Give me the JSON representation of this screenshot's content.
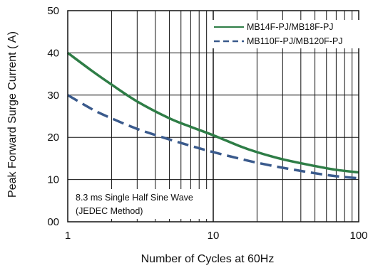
{
  "chart_data": {
    "type": "line",
    "xscale": "log",
    "xlim": [
      1,
      100
    ],
    "ylim": [
      0,
      50
    ],
    "xlabel": "Number of Cycles at 60Hz",
    "ylabel": "Peak Forward Surge Current ( A)",
    "x_ticks": [
      "1",
      "10",
      "100"
    ],
    "y_ticks": [
      "00",
      "10",
      "20",
      "30",
      "40",
      "50"
    ],
    "grid": true,
    "legend_position": "top-right",
    "annotation": [
      "8.3 ms Single Half Sine Wave",
      "(JEDEC Method)"
    ],
    "series": [
      {
        "name": "MB14F-PJ/MB18F-PJ",
        "color": "#2e7d46",
        "style": "solid",
        "x": [
          1,
          1.5,
          2,
          3,
          5,
          7,
          10,
          15,
          20,
          30,
          50,
          70,
          100
        ],
        "y": [
          40,
          35.5,
          32.5,
          28.5,
          24.5,
          22.5,
          20.5,
          18,
          16.5,
          14.8,
          13.2,
          12.3,
          11.7
        ]
      },
      {
        "name": "MB110F-PJ/MB120F-PJ",
        "color": "#3a5a8c",
        "style": "dashed",
        "x": [
          1,
          1.5,
          2,
          3,
          5,
          7,
          10,
          15,
          20,
          30,
          50,
          70,
          100
        ],
        "y": [
          30,
          26.5,
          24.5,
          22,
          19.5,
          18,
          16.5,
          15,
          14,
          12.8,
          11.5,
          10.8,
          10.3
        ]
      }
    ]
  }
}
